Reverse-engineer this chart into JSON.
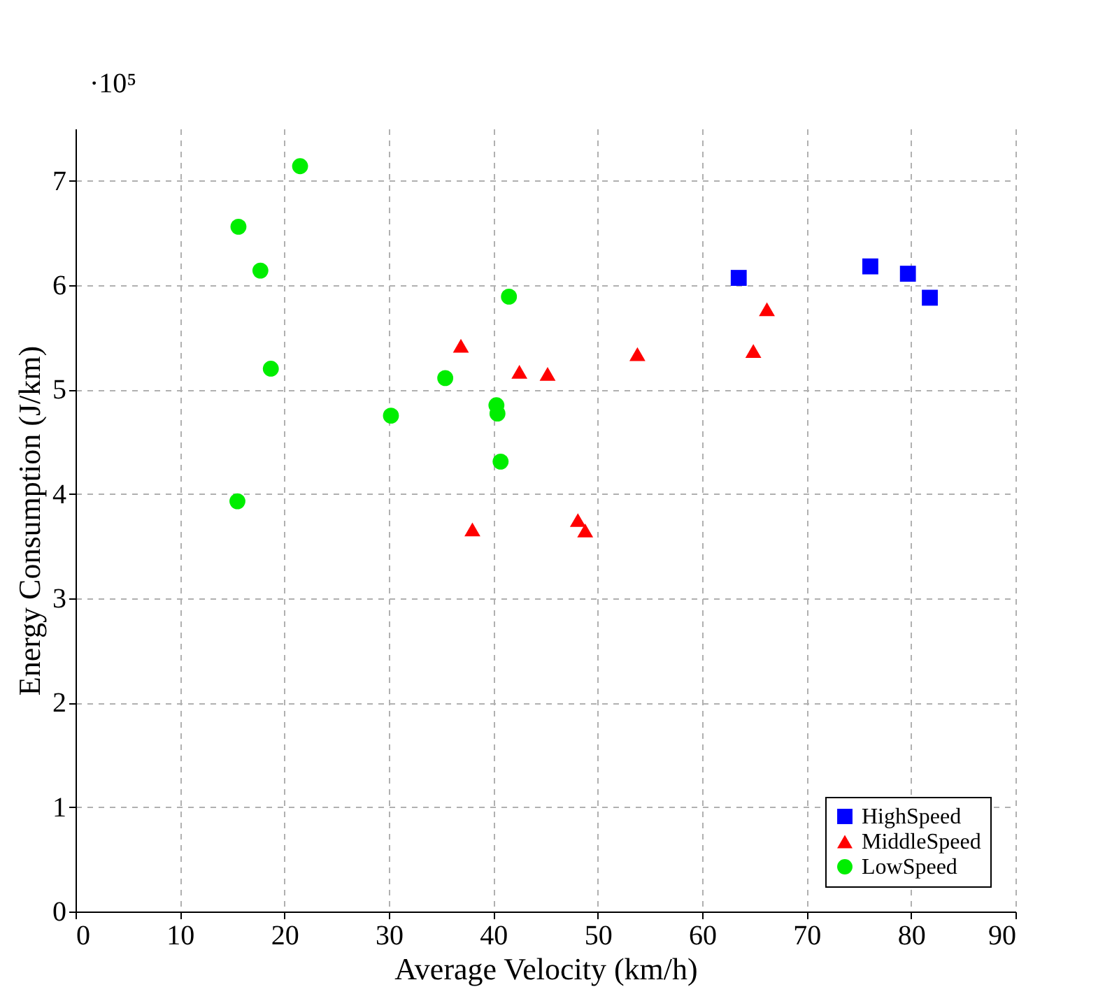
{
  "chart_data": {
    "type": "scatter",
    "xlabel": "Average Velocity (km/h)",
    "ylabel": "Energy Consumption (J/km)",
    "annotations": [
      "·10⁵"
    ],
    "xlim": [
      0,
      90
    ],
    "ylim": [
      0,
      7.5
    ],
    "xticks": [
      0,
      10,
      20,
      30,
      40,
      50,
      60,
      70,
      80,
      90
    ],
    "yticks": [
      0,
      1,
      2,
      3,
      4,
      5,
      6,
      7
    ],
    "grid": true,
    "legend": "bottom right",
    "series": [
      {
        "name": "HighSpeed",
        "color": "#0000ff",
        "marker": "square",
        "x": [
          63.5,
          76.1,
          79.7,
          81.8
        ],
        "values": [
          6.07,
          6.18,
          6.11,
          5.88
        ]
      },
      {
        "name": "MiddleSpeed",
        "color": "#ff0000",
        "marker": "triangle",
        "x": [
          36.9,
          38.0,
          42.5,
          45.2,
          48.1,
          48.8,
          53.8,
          64.9,
          66.2
        ],
        "values": [
          5.42,
          3.66,
          5.17,
          5.15,
          3.75,
          3.65,
          5.34,
          5.37,
          5.77
        ]
      },
      {
        "name": "LowSpeed",
        "color": "#00ee00",
        "marker": "circle",
        "x": [
          21.5,
          15.6,
          17.7,
          18.7,
          15.5,
          30.2,
          35.4,
          40.3,
          40.4,
          40.7,
          41.5
        ],
        "values": [
          7.14,
          6.56,
          6.14,
          5.2,
          3.93,
          4.75,
          5.11,
          4.85,
          4.77,
          4.31,
          5.89
        ]
      }
    ]
  }
}
